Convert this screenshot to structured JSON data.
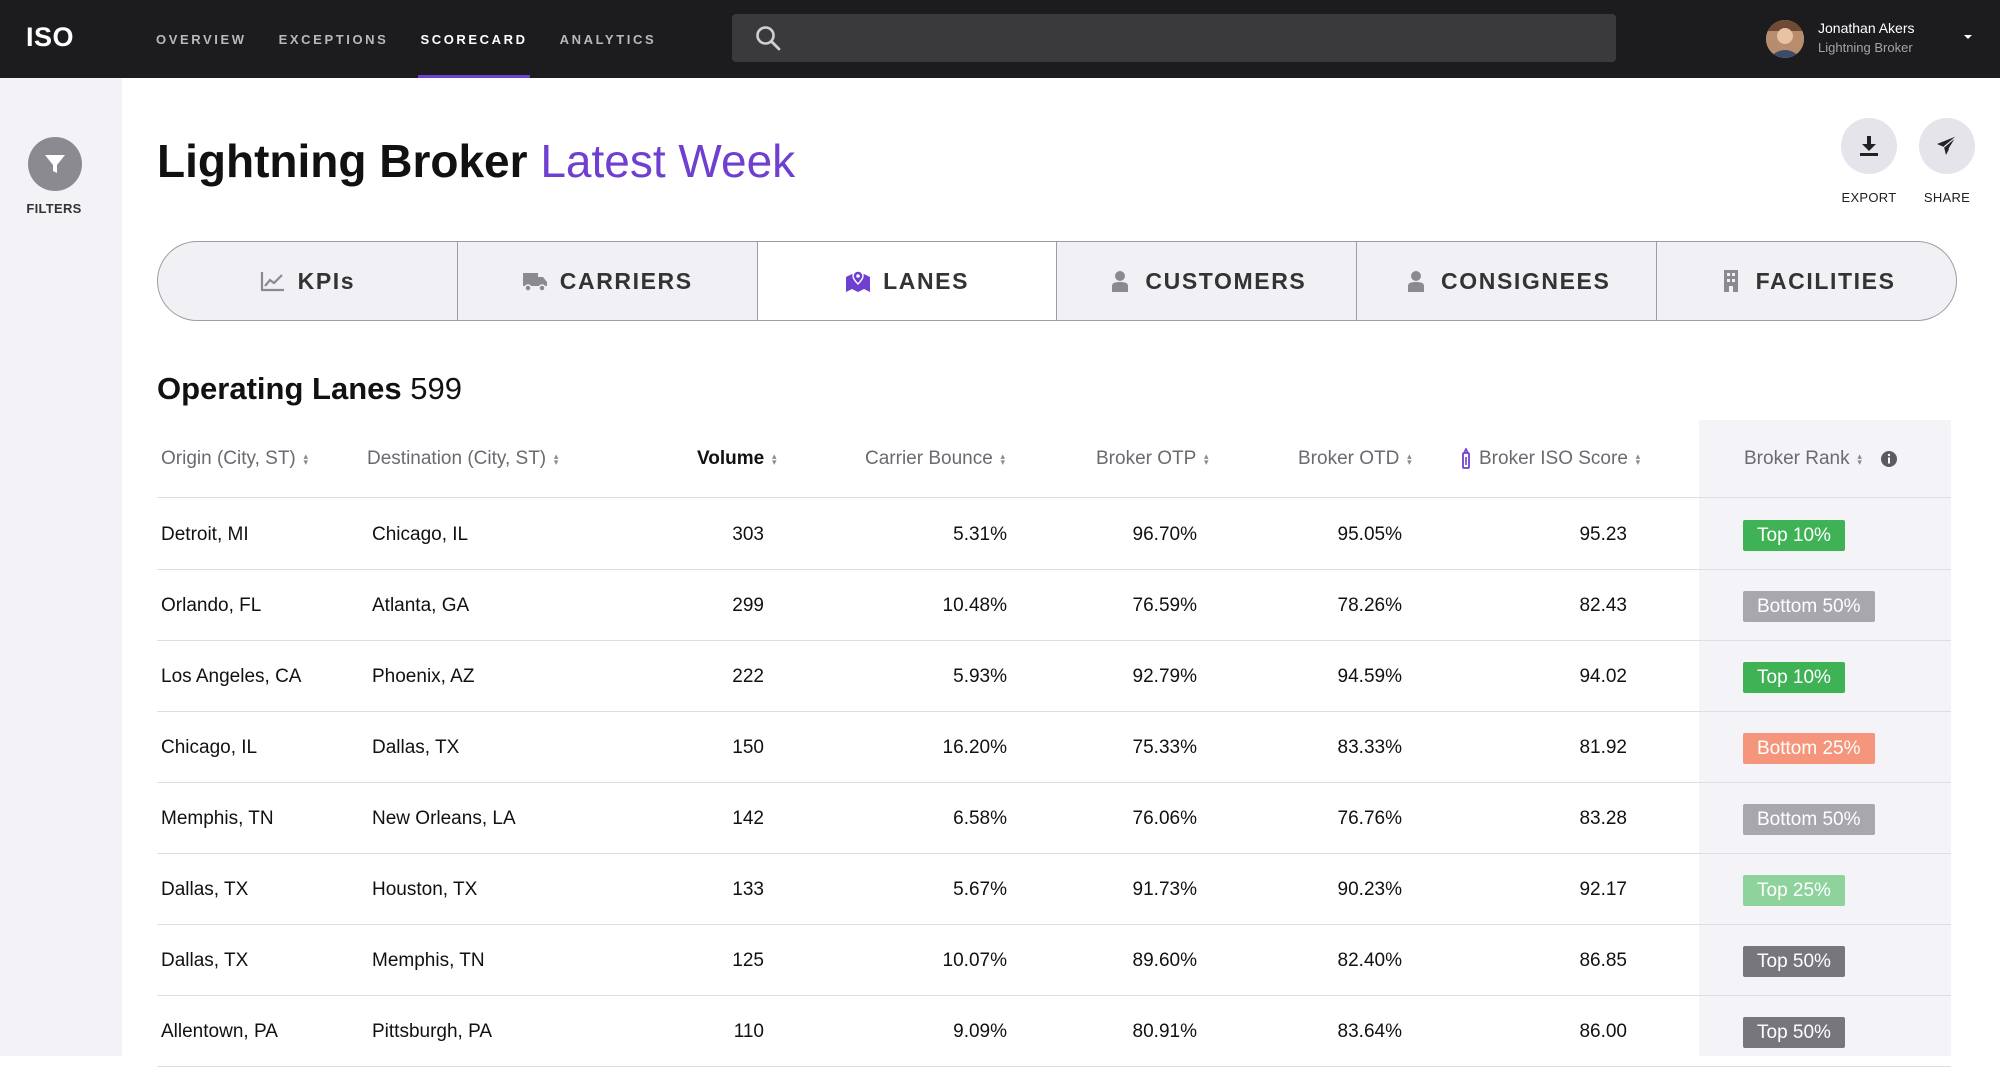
{
  "app": {
    "logo": "ISO"
  },
  "nav": [
    {
      "label": "OVERVIEW",
      "active": false
    },
    {
      "label": "EXCEPTIONS",
      "active": false
    },
    {
      "label": "SCORECARD",
      "active": true
    },
    {
      "label": "ANALYTICS",
      "active": false
    }
  ],
  "search": {
    "icon": "search-icon",
    "placeholder": ""
  },
  "user": {
    "name": "Jonathan Akers",
    "org": "Lightning Broker"
  },
  "filters": {
    "label": "FILTERS",
    "icon": "filter-icon"
  },
  "header": {
    "title_main": "Lightning Broker",
    "title_period": "Latest Week"
  },
  "actions": {
    "export_label": "EXPORT",
    "share_label": "SHARE"
  },
  "tabs": [
    {
      "label": "KPIs",
      "icon": "chart-icon",
      "active": false
    },
    {
      "label": "CARRIERS",
      "icon": "truck-icon",
      "active": false
    },
    {
      "label": "LANES",
      "icon": "map-pin-icon",
      "active": true
    },
    {
      "label": "CUSTOMERS",
      "icon": "person-icon",
      "active": false
    },
    {
      "label": "CONSIGNEES",
      "icon": "person-icon",
      "active": false
    },
    {
      "label": "FACILITIES",
      "icon": "building-icon",
      "active": false
    }
  ],
  "section": {
    "title": "Operating Lanes",
    "count": "599"
  },
  "table": {
    "columns": {
      "origin": "Origin (City, ST)",
      "destination": "Destination (City, ST)",
      "volume": "Volume",
      "bounce": "Carrier Bounce",
      "otp": "Broker OTP",
      "otd": "Broker OTD",
      "score": "Broker ISO Score",
      "rank": "Broker Rank"
    },
    "rows": [
      {
        "origin": "Detroit, MI",
        "destination": "Chicago, IL",
        "volume": "303",
        "bounce": "5.31%",
        "otp": "96.70%",
        "otd": "95.05%",
        "score": "95.23",
        "rank": "Top 10%",
        "rank_color": "#3fb255"
      },
      {
        "origin": "Orlando, FL",
        "destination": "Atlanta, GA",
        "volume": "299",
        "bounce": "10.48%",
        "otp": "76.59%",
        "otd": "78.26%",
        "score": "82.43",
        "rank": "Bottom 50%",
        "rank_color": "#a7a7ad"
      },
      {
        "origin": "Los Angeles, CA",
        "destination": "Phoenix, AZ",
        "volume": "222",
        "bounce": "5.93%",
        "otp": "92.79%",
        "otd": "94.59%",
        "score": "94.02",
        "rank": "Top 10%",
        "rank_color": "#3fb255"
      },
      {
        "origin": "Chicago, IL",
        "destination": "Dallas, TX",
        "volume": "150",
        "bounce": "16.20%",
        "otp": "75.33%",
        "otd": "83.33%",
        "score": "81.92",
        "rank": "Bottom 25%",
        "rank_color": "#f5957b"
      },
      {
        "origin": "Memphis, TN",
        "destination": "New Orleans, LA",
        "volume": "142",
        "bounce": "6.58%",
        "otp": "76.06%",
        "otd": "76.76%",
        "score": "83.28",
        "rank": "Bottom 50%",
        "rank_color": "#a7a7ad"
      },
      {
        "origin": "Dallas, TX",
        "destination": "Houston, TX",
        "volume": "133",
        "bounce": "5.67%",
        "otp": "91.73%",
        "otd": "90.23%",
        "score": "92.17",
        "rank": "Top 25%",
        "rank_color": "#8fd39c"
      },
      {
        "origin": "Dallas, TX",
        "destination": "Memphis, TN",
        "volume": "125",
        "bounce": "10.07%",
        "otp": "89.60%",
        "otd": "82.40%",
        "score": "86.85",
        "rank": "Top 50%",
        "rank_color": "#76767c"
      },
      {
        "origin": "Allentown, PA",
        "destination": "Pittsburgh, PA",
        "volume": "110",
        "bounce": "9.09%",
        "otp": "80.91%",
        "otd": "83.64%",
        "score": "86.00",
        "rank": "Top 50%",
        "rank_color": "#76767c"
      }
    ]
  }
}
